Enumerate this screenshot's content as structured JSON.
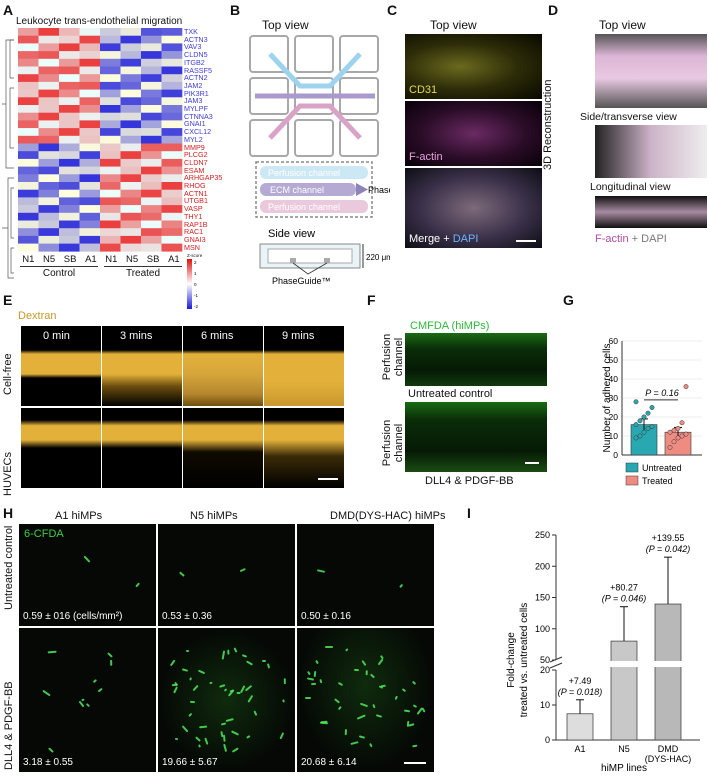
{
  "panels": {
    "A": {
      "label": "A",
      "title": "Leukocyte trans-endothelial migration",
      "columns": [
        "N1",
        "N5",
        "SB",
        "A1",
        "N1",
        "N5",
        "SB",
        "A1"
      ],
      "groups": [
        "Control",
        "Treated"
      ],
      "scale_title": "Z-score",
      "scale_ticks": [
        "2",
        "1",
        "0",
        "-1",
        "-2"
      ],
      "genes_blue": [
        "TXK",
        "ACTN3",
        "VAV3",
        "CLDN5",
        "ITGB2",
        "RASSF5",
        "ACTN2",
        "JAM2",
        "PIK3R1",
        "JAM3",
        "MYLPF",
        "CTNNA3",
        "GNAI1",
        "CXCL12",
        "MYL2"
      ],
      "genes_red": [
        "MMP9",
        "PLCG2",
        "CLDN7",
        "ESAM",
        "ARHGAP35",
        "RHOG",
        "ACTN1",
        "UTGB1",
        "VASP",
        "THY1",
        "RAP1B",
        "RAC1",
        "GNAI3",
        "MSN"
      ],
      "colors": {
        "blue": "#3d3dd6",
        "red": "#d42020"
      }
    },
    "B": {
      "label": "B",
      "top_view": "Top view",
      "side_view": "Side view",
      "legend": [
        "Perfusion channel",
        "ECM channel",
        "Perfusion channel"
      ],
      "phaseguide": "PhaseGuide™",
      "phaseguide2": "PhaseGuide™",
      "height_label": "220 μm"
    },
    "C": {
      "label": "C",
      "title": "Top view",
      "stain1": "CD31",
      "stain2": "F-actin",
      "stain3_a": "Merge + ",
      "stain3_b": "DAPI"
    },
    "D": {
      "label": "D",
      "side_title": "3D Reconstruction",
      "views": [
        "Top view",
        "Side/transverse view",
        "Longitudinal view"
      ],
      "legend_a": "F-actin",
      "legend_b": " + DAPI"
    },
    "E": {
      "label": "E",
      "dye": "Dextran",
      "times": [
        "0 min",
        "3 mins",
        "6 mins",
        "9 mins"
      ],
      "rows": [
        "Cell-free",
        "HUVECs"
      ]
    },
    "F": {
      "label": "F",
      "title": "CMFDA (hiMPs)",
      "row_label": "Perfusion channel",
      "row_label2": "Perfusion channel",
      "mid_label": "Untreated control",
      "bottom_label": "DLL4 & PDGF-BB"
    },
    "G": {
      "label": "G",
      "ylabel": "Number of adhered cells",
      "pvalue": "P = 0.16",
      "legend": [
        "Untreated",
        "Treated"
      ]
    },
    "H": {
      "label": "H",
      "columns": [
        "A1 hiMPs",
        "N5 hiMPs",
        "DMD(DYS-HAC) hiMPs"
      ],
      "stain": "6-CFDA",
      "rows": [
        "Untreated control",
        "DLL4 & PDGF-BB"
      ],
      "values_untreated": [
        "0.59 ± 016 (cells/mm²)",
        "0.53 ± 0.36",
        "0.50 ± 0.16"
      ],
      "values_treated": [
        "3.18 ± 0.55",
        "19.66 ± 5.67",
        "20.68 ± 6.14"
      ]
    },
    "I": {
      "label": "I",
      "ylabel_1": "Fold-change",
      "ylabel_2": "treated vs. untreated cells",
      "xlabel": "hiMP lines",
      "annotations": [
        {
          "fc": "+7.49",
          "p": "(P = 0.018)"
        },
        {
          "fc": "+80.27",
          "p": "(P = 0.046)"
        },
        {
          "fc": "+139.55",
          "p": "(P = 0.042)"
        }
      ]
    }
  },
  "chart_data": [
    {
      "type": "bar",
      "panel": "G",
      "categories": [
        "Untreated",
        "Treated"
      ],
      "values": [
        16,
        12
      ],
      "errors": [
        3,
        2.5
      ],
      "points": [
        [
          9,
          10,
          12,
          14,
          15,
          16,
          18,
          20,
          22,
          25,
          28
        ],
        [
          4,
          7,
          9,
          10,
          11,
          12,
          13,
          14,
          17,
          36
        ]
      ],
      "ylabel": "Number of adhered cells",
      "yticks": [
        0,
        10,
        20,
        30,
        40,
        50,
        60
      ],
      "ylim": [
        0,
        60
      ],
      "colors": [
        "#2aa8b2",
        "#ee8c82"
      ],
      "grid": true,
      "legend": "bottom"
    },
    {
      "type": "bar",
      "panel": "I",
      "categories": [
        "A1",
        "N5",
        "DMD\n(DYS-HAC)"
      ],
      "values": [
        7.49,
        80.27,
        139.55
      ],
      "errors": [
        4,
        55,
        75
      ],
      "ylabel": "Fold-change treated vs. untreated cells",
      "xlabel": "hiMP lines",
      "yticks": [
        0,
        10,
        20,
        50,
        100,
        150,
        200,
        250
      ],
      "axis_break": [
        20,
        50
      ],
      "ylim": [
        0,
        250
      ],
      "colors": [
        "#dddddd",
        "#c8c8c8",
        "#b8b8b8"
      ]
    }
  ]
}
